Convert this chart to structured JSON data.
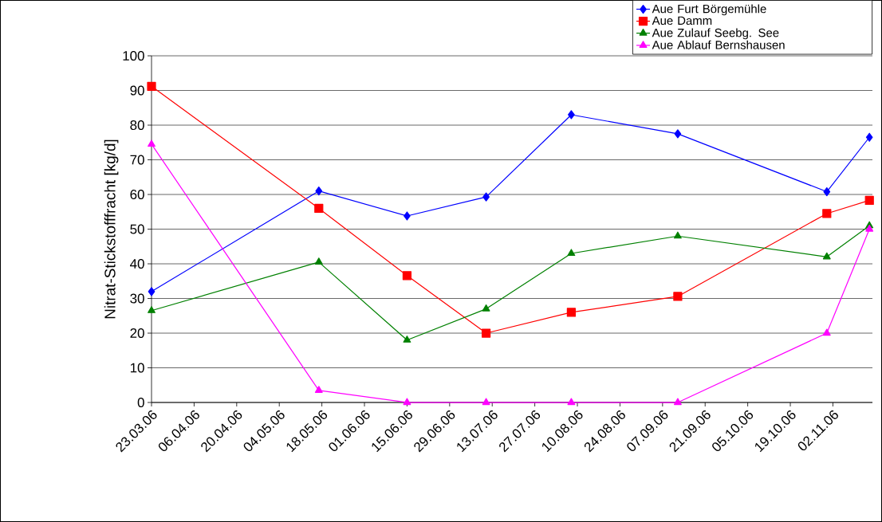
{
  "chart_data": {
    "type": "line",
    "ylabel": "Nitrat-Stickstofffracht [kg/d]",
    "x": [
      "2006-03-23",
      "2006-05-17",
      "2006-06-15",
      "2006-07-11",
      "2006-08-08",
      "2006-09-12",
      "2006-10-31",
      "2006-11-14"
    ],
    "series": [
      {
        "name": "Aue Furt Börgemühle",
        "color": "#0000ff",
        "marker": "diamond",
        "values": [
          32,
          61,
          53.8,
          59.3,
          83,
          77.5,
          60.8,
          76.5
        ]
      },
      {
        "name": "Aue Damm",
        "color": "#ff0000",
        "marker": "square",
        "values": [
          91.2,
          56,
          36.6,
          20,
          26,
          30.6,
          54.5,
          58.3
        ]
      },
      {
        "name": "Aue Zulauf Seebg. See",
        "color": "#008000",
        "marker": "triangle",
        "values": [
          26.5,
          40.5,
          18,
          27,
          43,
          48,
          42,
          51
        ]
      },
      {
        "name": "Aue Ablauf Bernshausen",
        "color": "#ff00ff",
        "marker": "triangle",
        "values": [
          74.5,
          3.5,
          0,
          0,
          0,
          0,
          20,
          50
        ]
      }
    ],
    "xlim": [
      "2006-03-23",
      "2006-11-15"
    ],
    "xticks": [
      {
        "value": "2006-03-23",
        "label": "23.03.06"
      },
      {
        "value": "2006-04-06",
        "label": "06.04.06"
      },
      {
        "value": "2006-04-20",
        "label": "20.04.06"
      },
      {
        "value": "2006-05-04",
        "label": "04.05.06"
      },
      {
        "value": "2006-05-18",
        "label": "18.05.06"
      },
      {
        "value": "2006-06-01",
        "label": "01.06.06"
      },
      {
        "value": "2006-06-15",
        "label": "15.06.06"
      },
      {
        "value": "2006-06-29",
        "label": "29.06.06"
      },
      {
        "value": "2006-07-13",
        "label": "13.07.06"
      },
      {
        "value": "2006-07-27",
        "label": "27.07.06"
      },
      {
        "value": "2006-08-10",
        "label": "10.08.06"
      },
      {
        "value": "2006-08-24",
        "label": "24.08.06"
      },
      {
        "value": "2006-09-07",
        "label": "07.09.06"
      },
      {
        "value": "2006-09-21",
        "label": "21.09.06"
      },
      {
        "value": "2006-10-05",
        "label": "05.10.06"
      },
      {
        "value": "2006-10-19",
        "label": "19.10.06"
      },
      {
        "value": "2006-11-02",
        "label": "02.11.06"
      }
    ],
    "ylim": [
      0,
      100
    ],
    "yticks": [
      0,
      10,
      20,
      30,
      40,
      50,
      60,
      70,
      80,
      90,
      100
    ],
    "grid": "y",
    "legend": "top right",
    "line_style": "solid"
  }
}
